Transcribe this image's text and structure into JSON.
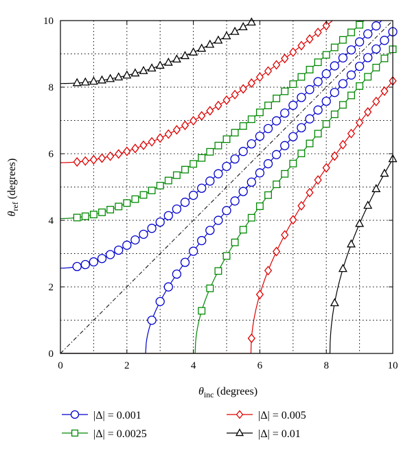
{
  "chart_data": {
    "type": "line",
    "xlabel": "θinc (degrees)",
    "ylabel": "θref (degrees)",
    "xlabel_main": "θ",
    "xlabel_sub": "inc",
    "xlabel_rest": " (degrees)",
    "ylabel_main": "θ",
    "ylabel_sub": "ref",
    "ylabel_rest": " (degrees)",
    "xlim": [
      0,
      10
    ],
    "ylim": [
      0,
      10
    ],
    "x_ticks": [
      "0",
      "2",
      "4",
      "6",
      "8",
      "10"
    ],
    "y_ticks": [
      "0",
      "2",
      "4",
      "6",
      "8",
      "10"
    ],
    "grid": "dotted",
    "legend_position": "below",
    "series": [
      {
        "name": "|Δ| = 0.001",
        "delta": 0.001,
        "color": "#0000cc",
        "marker": "circle"
      },
      {
        "name": "|Δ| = 0.0025",
        "delta": 0.0025,
        "color": "#008800",
        "marker": "square"
      },
      {
        "name": "|Δ| = 0.005",
        "delta": 0.005,
        "color": "#dd0000",
        "marker": "diamond"
      },
      {
        "name": "|Δ| = 0.01",
        "delta": 0.01,
        "color": "#000000",
        "marker": "triangle"
      }
    ],
    "reference_line": "y = x (dash-dot)"
  }
}
